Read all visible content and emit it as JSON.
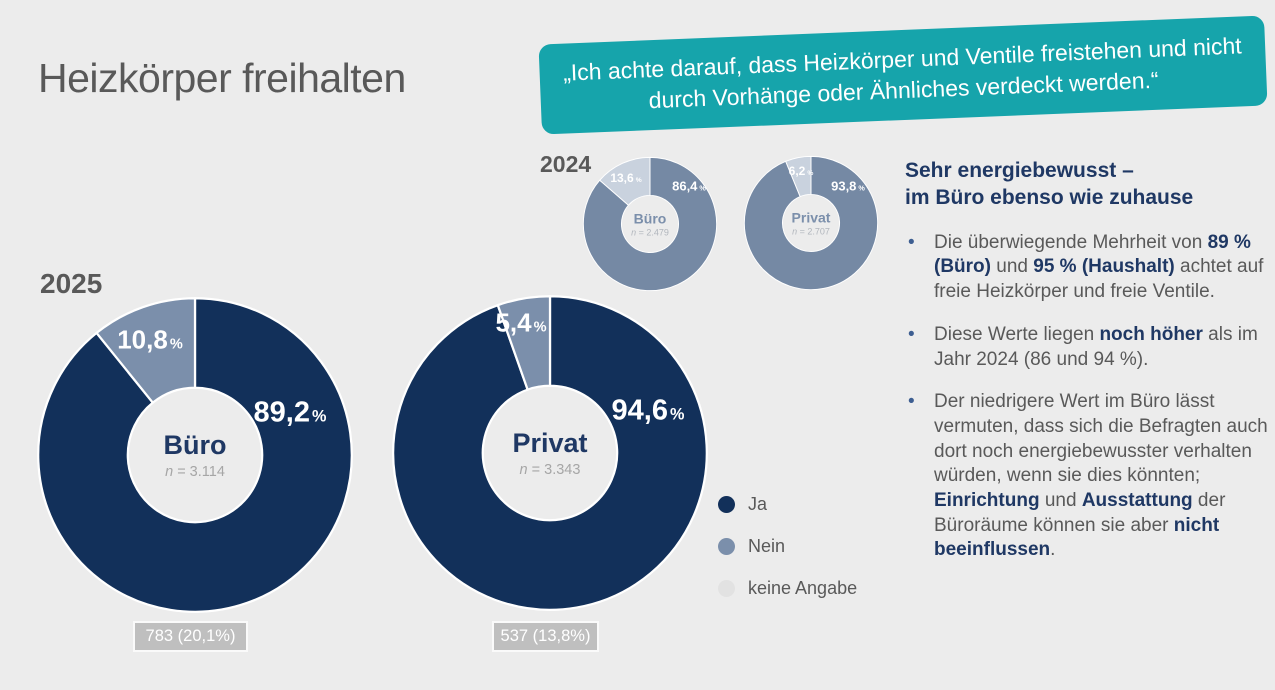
{
  "title": "Heizkörper freihalten",
  "quote_banner": {
    "text": "„Ich achte darauf, dass Heizkörper und Ventile freistehen und nicht durch Vorhänge oder Ähnliches verdeckt werden.“",
    "background": "#16a4ab"
  },
  "year_labels": {
    "previous": "2024",
    "current": "2025"
  },
  "percent_sign": "%",
  "n_symbol": "n",
  "colors": {
    "background": "#ececec",
    "ja": "#12305a",
    "nein": "#7b8fab",
    "keine_angabe": "#e2e2e2",
    "ja_2024": "#7589a4",
    "nein_2024": "#c9d2de",
    "accent_teal": "#16a4ab",
    "navy_text": "#1f3864",
    "body_text": "#595959"
  },
  "chart_data": [
    {
      "type": "pie",
      "year": "2024",
      "group": "Büro",
      "n_value": "= 2.479",
      "segments": [
        {
          "name": "Ja",
          "value": 86.4,
          "label": "86,4",
          "color": "#7589a4"
        },
        {
          "name": "Nein",
          "value": 13.6,
          "label": "13,6",
          "color": "#c9d2de"
        }
      ]
    },
    {
      "type": "pie",
      "year": "2024",
      "group": "Privat",
      "n_value": "= 2.707",
      "segments": [
        {
          "name": "Ja",
          "value": 93.8,
          "label": "93,8",
          "color": "#7589a4"
        },
        {
          "name": "Nein",
          "value": 6.2,
          "label": "6,2",
          "color": "#c9d2de"
        }
      ]
    },
    {
      "type": "pie",
      "year": "2025",
      "group": "Büro",
      "n_value": "= 3.114",
      "note": "783 (20,1%)",
      "segments": [
        {
          "name": "Ja",
          "value": 89.2,
          "label": "89,2",
          "color": "#12305a"
        },
        {
          "name": "Nein",
          "value": 10.8,
          "label": "10,8",
          "color": "#7b8fab"
        }
      ]
    },
    {
      "type": "pie",
      "year": "2025",
      "group": "Privat",
      "n_value": "= 3.343",
      "note": "537 (13,8%)",
      "segments": [
        {
          "name": "Ja",
          "value": 94.6,
          "label": "94,6",
          "color": "#12305a"
        },
        {
          "name": "Nein",
          "value": 5.4,
          "label": "5,4",
          "color": "#7b8fab"
        }
      ]
    }
  ],
  "legend": {
    "items": [
      {
        "key": "ja",
        "label": "Ja",
        "color": "#12305a"
      },
      {
        "key": "nein",
        "label": "Nein",
        "color": "#7b8fab"
      },
      {
        "key": "keine_angabe",
        "label": "keine Angabe",
        "color": "#e2e2e2"
      }
    ]
  },
  "insights": {
    "heading_lines": [
      "Sehr energiebewusst –",
      "im Büro ebenso wie zuhause"
    ],
    "bullets": [
      {
        "segments": [
          {
            "t": "Die überwiegende Mehrheit von ",
            "b": false
          },
          {
            "t": "89 % (Büro)",
            "b": true
          },
          {
            "t": " und ",
            "b": false
          },
          {
            "t": "95 % (Haushalt)",
            "b": true
          },
          {
            "t": " achtet auf freie Heizkörper und freie Ventile.",
            "b": false
          }
        ]
      },
      {
        "segments": [
          {
            "t": "Diese Werte liegen ",
            "b": false
          },
          {
            "t": "noch höher",
            "b": true
          },
          {
            "t": " als im Jahr 2024 (86 und 94 %).",
            "b": false
          }
        ]
      },
      {
        "segments": [
          {
            "t": "Der niedrigere Wert im Büro lässt vermuten, dass sich die Befragten auch dort noch energiebewusster verhalten würden, wenn sie dies könnten; ",
            "b": false
          },
          {
            "t": "Einrichtung",
            "b": true
          },
          {
            "t": " und ",
            "b": false
          },
          {
            "t": "Ausstattung",
            "b": true
          },
          {
            "t": " der Büroräume können sie aber ",
            "b": false
          },
          {
            "t": "nicht beeinflussen",
            "b": true
          },
          {
            "t": ".",
            "b": false
          }
        ]
      }
    ]
  }
}
